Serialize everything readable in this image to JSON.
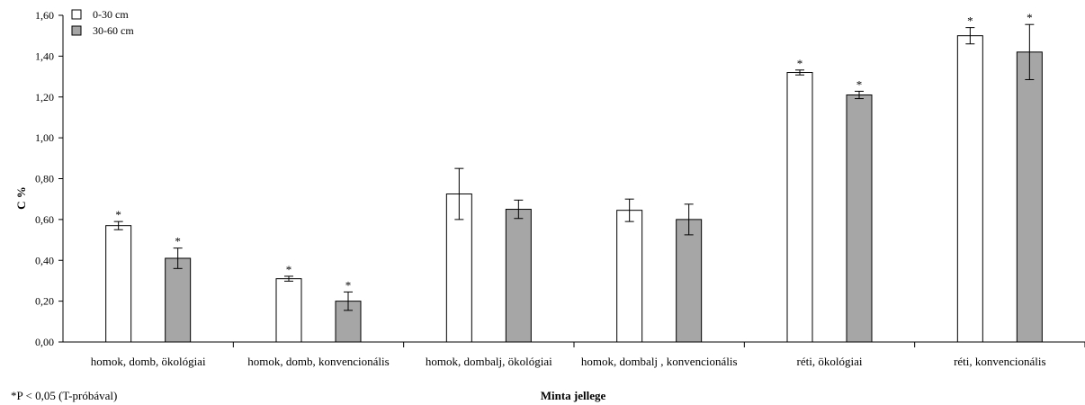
{
  "chart_data": {
    "type": "bar",
    "categories": [
      "homok, domb, ökológiai",
      "homok, domb, konvencionális",
      "homok, dombalj, ökológiai",
      "homok, dombalj , konvencionális",
      "réti, ökológiai",
      "réti, konvencionális"
    ],
    "series": [
      {
        "name": "0-30 cm",
        "color": "#ffffff",
        "values": [
          0.57,
          0.31,
          0.725,
          0.645,
          1.32,
          1.5
        ],
        "errors": [
          0.02,
          0.012,
          0.125,
          0.055,
          0.012,
          0.04
        ],
        "significant": [
          true,
          true,
          false,
          false,
          true,
          true
        ]
      },
      {
        "name": "30-60 cm",
        "color": "#a6a6a6",
        "values": [
          0.41,
          0.2,
          0.65,
          0.6,
          1.21,
          1.42
        ],
        "errors": [
          0.05,
          0.045,
          0.045,
          0.075,
          0.018,
          0.135
        ],
        "significant": [
          true,
          true,
          false,
          false,
          true,
          true
        ]
      }
    ],
    "ylabel": "C %",
    "xlabel": "Minta jellege",
    "ylim": [
      0,
      1.6
    ],
    "yticks": [
      "0,00",
      "0,20",
      "0,40",
      "0,60",
      "0,80",
      "1,00",
      "1,20",
      "1,40",
      "1,60"
    ],
    "significance_marker": "*",
    "legend_position": "top-left",
    "grid": false
  },
  "footnote": "*P < 0,05 (T-próbával)"
}
